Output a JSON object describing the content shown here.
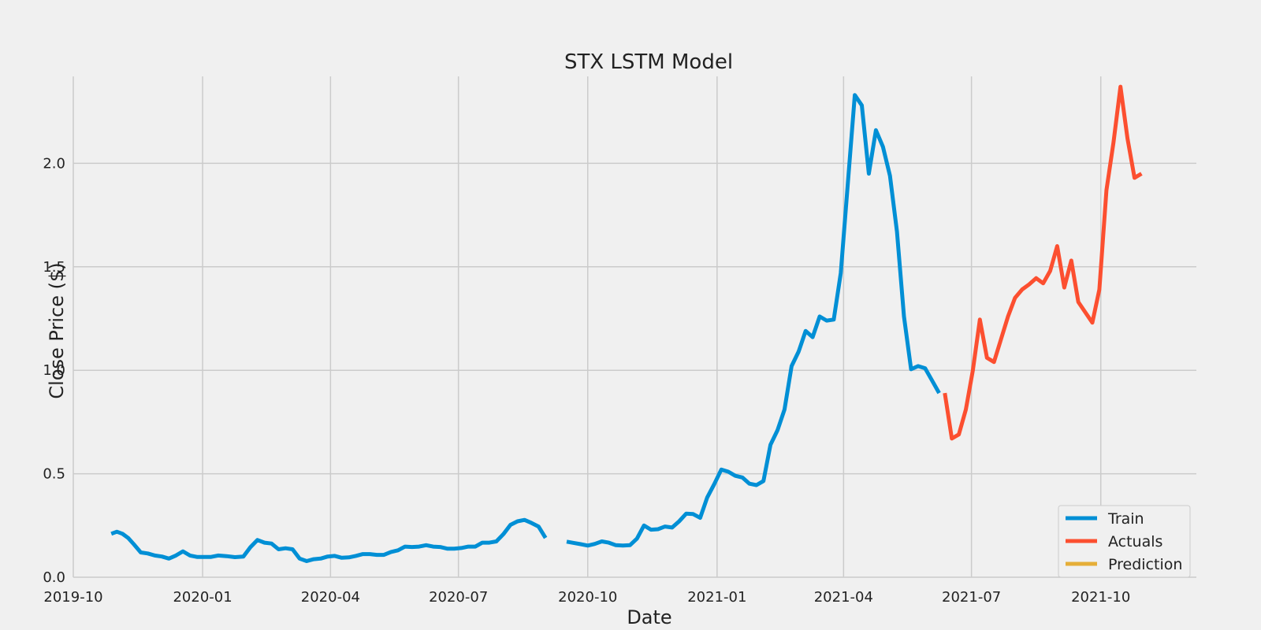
{
  "chart_data": {
    "type": "line",
    "title": "STX LSTM Model",
    "xlabel": "Date",
    "ylabel": "Close Price ($)",
    "xlim": [
      "2019-10-01",
      "2021-12-08"
    ],
    "ylim": [
      0,
      2.42
    ],
    "xticks": [
      "2019-10",
      "2020-01",
      "2020-04",
      "2020-07",
      "2020-10",
      "2021-01",
      "2021-04",
      "2021-07",
      "2021-10"
    ],
    "yticks": [
      "0.0",
      "0.5",
      "1.0",
      "1.5",
      "2.0"
    ],
    "grid": true,
    "legend": "lower-right",
    "series": [
      {
        "name": "Train",
        "color": "#008fd5",
        "segments": [
          [
            [
              "2019-10-28",
              0.21
            ],
            [
              "2019-11-01",
              0.22
            ],
            [
              "2019-11-05",
              0.21
            ],
            [
              "2019-11-09",
              0.19
            ],
            [
              "2019-11-13",
              0.16
            ],
            [
              "2019-11-18",
              0.12
            ],
            [
              "2019-11-23",
              0.115
            ],
            [
              "2019-11-28",
              0.105
            ],
            [
              "2019-12-03",
              0.1
            ],
            [
              "2019-12-08",
              0.09
            ],
            [
              "2019-12-13",
              0.105
            ],
            [
              "2019-12-18",
              0.125
            ],
            [
              "2019-12-23",
              0.105
            ],
            [
              "2019-12-28",
              0.098
            ],
            [
              "2020-01-02",
              0.098
            ],
            [
              "2020-01-07",
              0.098
            ],
            [
              "2020-01-12",
              0.105
            ],
            [
              "2020-01-18",
              0.102
            ],
            [
              "2020-01-24",
              0.097
            ],
            [
              "2020-01-30",
              0.1
            ],
            [
              "2020-02-04",
              0.145
            ],
            [
              "2020-02-09",
              0.18
            ],
            [
              "2020-02-14",
              0.167
            ],
            [
              "2020-02-19",
              0.163
            ],
            [
              "2020-02-24",
              0.135
            ],
            [
              "2020-02-29",
              0.14
            ],
            [
              "2020-03-05",
              0.135
            ],
            [
              "2020-03-10",
              0.09
            ],
            [
              "2020-03-15",
              0.078
            ],
            [
              "2020-03-20",
              0.087
            ],
            [
              "2020-03-25",
              0.09
            ],
            [
              "2020-03-30",
              0.1
            ],
            [
              "2020-04-04",
              0.103
            ],
            [
              "2020-04-09",
              0.094
            ],
            [
              "2020-04-14",
              0.096
            ],
            [
              "2020-04-19",
              0.103
            ],
            [
              "2020-04-24",
              0.112
            ],
            [
              "2020-04-29",
              0.112
            ],
            [
              "2020-05-04",
              0.108
            ],
            [
              "2020-05-09",
              0.108
            ],
            [
              "2020-05-14",
              0.122
            ],
            [
              "2020-05-19",
              0.13
            ],
            [
              "2020-05-24",
              0.148
            ],
            [
              "2020-05-29",
              0.146
            ],
            [
              "2020-06-03",
              0.148
            ],
            [
              "2020-06-08",
              0.155
            ],
            [
              "2020-06-13",
              0.148
            ],
            [
              "2020-06-18",
              0.146
            ],
            [
              "2020-06-23",
              0.138
            ],
            [
              "2020-06-28",
              0.138
            ],
            [
              "2020-07-03",
              0.141
            ],
            [
              "2020-07-08",
              0.148
            ],
            [
              "2020-07-13",
              0.148
            ],
            [
              "2020-07-18",
              0.167
            ],
            [
              "2020-07-23",
              0.167
            ],
            [
              "2020-07-28",
              0.173
            ],
            [
              "2020-08-02",
              0.208
            ],
            [
              "2020-08-07",
              0.253
            ],
            [
              "2020-08-12",
              0.27
            ],
            [
              "2020-08-17",
              0.277
            ],
            [
              "2020-08-22",
              0.262
            ],
            [
              "2020-08-27",
              0.245
            ],
            [
              "2020-09-01",
              0.19
            ]
          ],
          [
            [
              "2020-09-16",
              0.172
            ],
            [
              "2020-09-21",
              0.166
            ],
            [
              "2020-09-26",
              0.16
            ],
            [
              "2020-10-01",
              0.153
            ],
            [
              "2020-10-06",
              0.161
            ],
            [
              "2020-10-11",
              0.173
            ],
            [
              "2020-10-16",
              0.167
            ],
            [
              "2020-10-21",
              0.155
            ],
            [
              "2020-10-26",
              0.153
            ],
            [
              "2020-10-31",
              0.155
            ],
            [
              "2020-11-05",
              0.187
            ],
            [
              "2020-11-10",
              0.25
            ],
            [
              "2020-11-15",
              0.23
            ],
            [
              "2020-11-20",
              0.232
            ],
            [
              "2020-11-25",
              0.245
            ],
            [
              "2020-11-30",
              0.24
            ],
            [
              "2020-12-05",
              0.27
            ],
            [
              "2020-12-10",
              0.307
            ],
            [
              "2020-12-15",
              0.305
            ],
            [
              "2020-12-20",
              0.287
            ],
            [
              "2020-12-25",
              0.385
            ],
            [
              "2020-12-30",
              0.45
            ],
            [
              "2021-01-04",
              0.52
            ],
            [
              "2021-01-09",
              0.51
            ],
            [
              "2021-01-14",
              0.49
            ],
            [
              "2021-01-19",
              0.482
            ],
            [
              "2021-01-24",
              0.452
            ],
            [
              "2021-01-29",
              0.445
            ],
            [
              "2021-02-03",
              0.465
            ],
            [
              "2021-02-08",
              0.64
            ],
            [
              "2021-02-13",
              0.71
            ],
            [
              "2021-02-18",
              0.81
            ],
            [
              "2021-02-23",
              1.02
            ],
            [
              "2021-02-28",
              1.09
            ],
            [
              "2021-03-05",
              1.19
            ],
            [
              "2021-03-10",
              1.16
            ],
            [
              "2021-03-15",
              1.26
            ],
            [
              "2021-03-20",
              1.24
            ],
            [
              "2021-03-25",
              1.245
            ],
            [
              "2021-03-30",
              1.47
            ],
            [
              "2021-04-04",
              1.9
            ],
            [
              "2021-04-09",
              2.33
            ],
            [
              "2021-04-14",
              2.28
            ],
            [
              "2021-04-19",
              1.95
            ],
            [
              "2021-04-24",
              2.16
            ],
            [
              "2021-04-29",
              2.08
            ],
            [
              "2021-05-04",
              1.94
            ],
            [
              "2021-05-09",
              1.67
            ],
            [
              "2021-05-14",
              1.26
            ],
            [
              "2021-05-19",
              1.005
            ],
            [
              "2021-05-24",
              1.02
            ],
            [
              "2021-05-29",
              1.01
            ],
            [
              "2021-06-03",
              0.95
            ],
            [
              "2021-06-08",
              0.89
            ]
          ]
        ]
      },
      {
        "name": "Actuals",
        "color": "#fc4f30",
        "segments": [
          [
            [
              "2021-06-12",
              0.89
            ],
            [
              "2021-06-17",
              0.67
            ],
            [
              "2021-06-22",
              0.69
            ],
            [
              "2021-06-27",
              0.81
            ],
            [
              "2021-07-02",
              1.0
            ],
            [
              "2021-07-07",
              1.245
            ],
            [
              "2021-07-12",
              1.06
            ],
            [
              "2021-07-17",
              1.04
            ],
            [
              "2021-07-22",
              1.15
            ],
            [
              "2021-07-27",
              1.26
            ],
            [
              "2021-08-01",
              1.35
            ],
            [
              "2021-08-06",
              1.39
            ],
            [
              "2021-08-11",
              1.415
            ],
            [
              "2021-08-16",
              1.445
            ],
            [
              "2021-08-21",
              1.42
            ],
            [
              "2021-08-26",
              1.48
            ],
            [
              "2021-08-31",
              1.6
            ],
            [
              "2021-09-05",
              1.4
            ],
            [
              "2021-09-10",
              1.53
            ],
            [
              "2021-09-15",
              1.33
            ],
            [
              "2021-09-20",
              1.28
            ],
            [
              "2021-09-25",
              1.23
            ],
            [
              "2021-09-30",
              1.39
            ],
            [
              "2021-10-05",
              1.87
            ],
            [
              "2021-10-10",
              2.1
            ],
            [
              "2021-10-15",
              2.37
            ],
            [
              "2021-10-20",
              2.12
            ],
            [
              "2021-10-25",
              1.93
            ],
            [
              "2021-10-30",
              1.95
            ]
          ]
        ]
      },
      {
        "name": "Prediction",
        "color": "#e5ae38",
        "segments": []
      }
    ]
  }
}
